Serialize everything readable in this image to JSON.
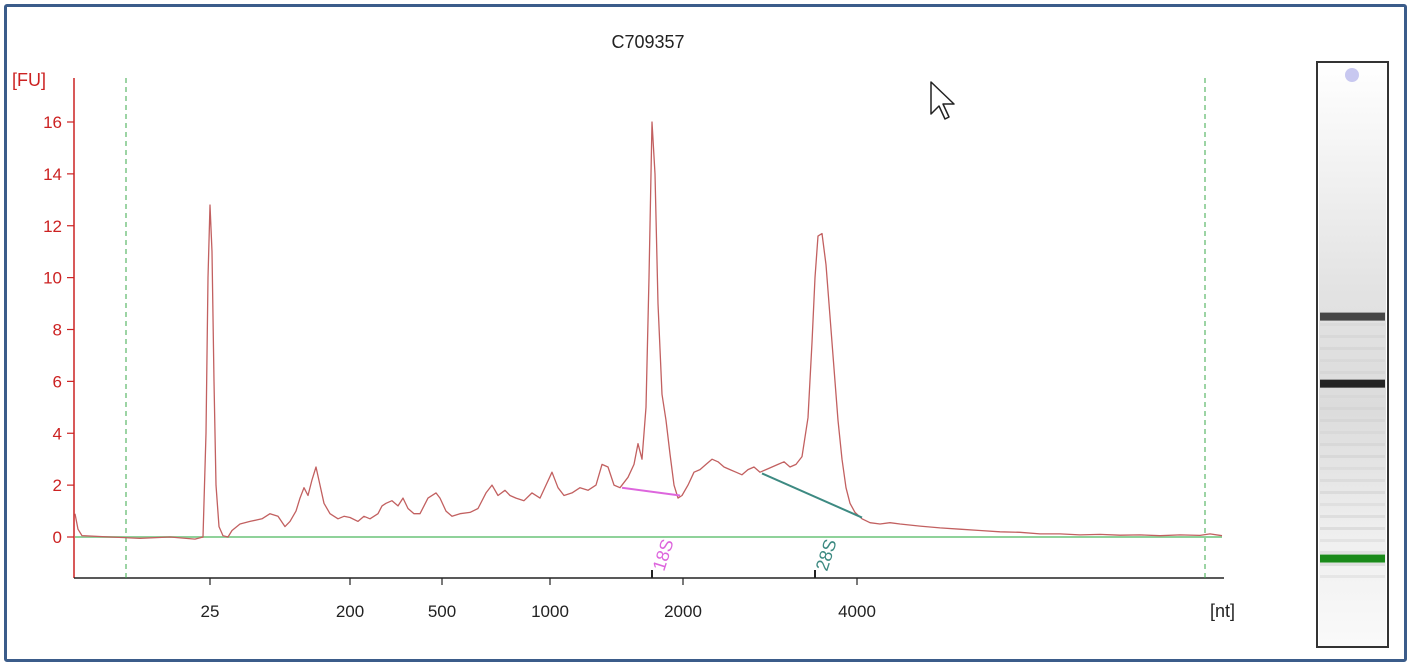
{
  "chart_data": {
    "type": "line",
    "title": "C709357",
    "ylabel": "[FU]",
    "xlabel": "[nt]",
    "ylim": [
      -1.6,
      17.5
    ],
    "yticks": [
      0,
      2,
      4,
      6,
      8,
      10,
      12,
      14,
      16
    ],
    "xtick_labels": [
      "25",
      "200",
      "500",
      "1000",
      "2000",
      "4000"
    ],
    "grid": false,
    "series": [
      {
        "color": "#c26060",
        "points": [
          [
            75,
            0.9
          ],
          [
            78,
            0.3
          ],
          [
            82,
            0.05
          ],
          [
            110,
            0.0
          ],
          [
            140,
            -0.05
          ],
          [
            170,
            0.0
          ],
          [
            195,
            -0.08
          ],
          [
            203,
            0.0
          ],
          [
            206,
            4.0
          ],
          [
            208,
            10.0
          ],
          [
            210,
            12.8
          ],
          [
            212,
            11.0
          ],
          [
            214,
            6.0
          ],
          [
            216,
            2.0
          ],
          [
            219,
            0.4
          ],
          [
            223,
            0.05
          ],
          [
            228,
            0.0
          ],
          [
            232,
            0.25
          ],
          [
            240,
            0.5
          ],
          [
            250,
            0.6
          ],
          [
            262,
            0.7
          ],
          [
            270,
            0.9
          ],
          [
            278,
            0.8
          ],
          [
            285,
            0.4
          ],
          [
            290,
            0.6
          ],
          [
            296,
            1.0
          ],
          [
            300,
            1.5
          ],
          [
            304,
            1.9
          ],
          [
            308,
            1.6
          ],
          [
            312,
            2.2
          ],
          [
            316,
            2.7
          ],
          [
            320,
            2.0
          ],
          [
            324,
            1.3
          ],
          [
            330,
            0.9
          ],
          [
            338,
            0.7
          ],
          [
            344,
            0.8
          ],
          [
            350,
            0.75
          ],
          [
            358,
            0.6
          ],
          [
            364,
            0.8
          ],
          [
            370,
            0.7
          ],
          [
            378,
            0.9
          ],
          [
            382,
            1.2
          ],
          [
            386,
            1.3
          ],
          [
            392,
            1.4
          ],
          [
            398,
            1.2
          ],
          [
            403,
            1.5
          ],
          [
            408,
            1.1
          ],
          [
            414,
            0.9
          ],
          [
            420,
            0.9
          ],
          [
            428,
            1.5
          ],
          [
            436,
            1.7
          ],
          [
            440,
            1.5
          ],
          [
            446,
            1.0
          ],
          [
            452,
            0.8
          ],
          [
            460,
            0.9
          ],
          [
            470,
            0.95
          ],
          [
            478,
            1.1
          ],
          [
            486,
            1.7
          ],
          [
            492,
            2.0
          ],
          [
            498,
            1.6
          ],
          [
            505,
            1.8
          ],
          [
            510,
            1.6
          ],
          [
            516,
            1.5
          ],
          [
            524,
            1.4
          ],
          [
            532,
            1.7
          ],
          [
            540,
            1.5
          ],
          [
            546,
            2.0
          ],
          [
            552,
            2.5
          ],
          [
            558,
            1.9
          ],
          [
            564,
            1.6
          ],
          [
            572,
            1.7
          ],
          [
            580,
            1.9
          ],
          [
            588,
            1.8
          ],
          [
            596,
            2.0
          ],
          [
            602,
            2.8
          ],
          [
            608,
            2.7
          ],
          [
            614,
            2.0
          ],
          [
            620,
            1.9
          ],
          [
            628,
            2.3
          ],
          [
            634,
            2.8
          ],
          [
            638,
            3.6
          ],
          [
            642,
            3.0
          ],
          [
            646,
            5.0
          ],
          [
            649,
            10.0
          ],
          [
            652,
            16.0
          ],
          [
            655,
            14.0
          ],
          [
            658,
            9.0
          ],
          [
            662,
            5.5
          ],
          [
            666,
            4.5
          ],
          [
            670,
            3.2
          ],
          [
            674,
            2.0
          ],
          [
            678,
            1.5
          ],
          [
            682,
            1.6
          ],
          [
            688,
            2.0
          ],
          [
            694,
            2.5
          ],
          [
            700,
            2.6
          ],
          [
            706,
            2.8
          ],
          [
            712,
            3.0
          ],
          [
            718,
            2.9
          ],
          [
            724,
            2.7
          ],
          [
            730,
            2.6
          ],
          [
            736,
            2.5
          ],
          [
            742,
            2.4
          ],
          [
            748,
            2.6
          ],
          [
            754,
            2.7
          ],
          [
            760,
            2.5
          ],
          [
            766,
            2.6
          ],
          [
            772,
            2.7
          ],
          [
            778,
            2.8
          ],
          [
            784,
            2.9
          ],
          [
            790,
            2.7
          ],
          [
            796,
            2.8
          ],
          [
            802,
            3.1
          ],
          [
            808,
            4.6
          ],
          [
            812,
            7.5
          ],
          [
            815,
            10.0
          ],
          [
            818,
            11.6
          ],
          [
            822,
            11.7
          ],
          [
            826,
            10.5
          ],
          [
            830,
            8.5
          ],
          [
            834,
            6.5
          ],
          [
            838,
            4.5
          ],
          [
            842,
            3.0
          ],
          [
            846,
            1.9
          ],
          [
            850,
            1.3
          ],
          [
            855,
            0.95
          ],
          [
            862,
            0.7
          ],
          [
            870,
            0.55
          ],
          [
            880,
            0.5
          ],
          [
            890,
            0.55
          ],
          [
            900,
            0.5
          ],
          [
            920,
            0.42
          ],
          [
            940,
            0.35
          ],
          [
            960,
            0.3
          ],
          [
            980,
            0.25
          ],
          [
            1000,
            0.2
          ],
          [
            1020,
            0.18
          ],
          [
            1040,
            0.12
          ],
          [
            1060,
            0.12
          ],
          [
            1080,
            0.08
          ],
          [
            1100,
            0.1
          ],
          [
            1120,
            0.07
          ],
          [
            1140,
            0.08
          ],
          [
            1160,
            0.05
          ],
          [
            1180,
            0.08
          ],
          [
            1200,
            0.06
          ],
          [
            1210,
            0.12
          ],
          [
            1222,
            0.05
          ]
        ]
      }
    ],
    "baseline": {
      "color": "#8fd29a",
      "x_start": 75,
      "x_end": 1222,
      "y": 0
    },
    "vertical_markers": {
      "color": "#3aa84a",
      "x": [
        126,
        1205
      ]
    },
    "peak_baselines": [
      {
        "label": "18S",
        "color": "#dd66dd",
        "x0": 622,
        "y0": 1.9,
        "x1": 680,
        "y1": 1.6
      },
      {
        "label": "28S",
        "color": "#3d8a82",
        "x0": 762,
        "y0": 2.45,
        "x1": 862,
        "y1": 0.75
      }
    ],
    "size_ticks": [
      {
        "x": 210,
        "label": "25"
      },
      {
        "x": 350,
        "label": "200"
      },
      {
        "x": 442,
        "label": "500"
      },
      {
        "x": 550,
        "label": "1000"
      },
      {
        "x": 683,
        "label": "2000"
      },
      {
        "x": 857,
        "label": "4000"
      }
    ],
    "peak_tick_marks": [
      {
        "x": 652,
        "label": "18S",
        "color": "#dd66dd"
      },
      {
        "x": 815,
        "label": "28S",
        "color": "#3d8a82"
      }
    ]
  },
  "gel": {
    "marker_dot_color": "#c8c8f0",
    "bands": [
      {
        "pos": 0.435,
        "intensity": 0.85,
        "color": "#2a2a2a"
      },
      {
        "pos": 0.55,
        "intensity": 0.95,
        "color": "#1a1a1a"
      },
      {
        "pos": 0.85,
        "intensity": 1.0,
        "color": "#1a8a1a"
      }
    ]
  }
}
